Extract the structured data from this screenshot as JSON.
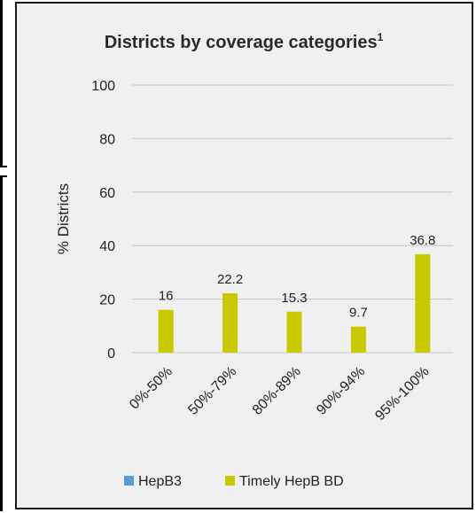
{
  "chart_data": {
    "type": "bar",
    "title": "Districts by coverage categories",
    "title_superscript": "1",
    "ylabel": "% Districts",
    "xlabel": "",
    "ylim": [
      0,
      100
    ],
    "yticks": [
      0,
      20,
      40,
      60,
      80,
      100
    ],
    "grid": true,
    "legend_position": "bottom",
    "categories": [
      "0%-50%",
      "50%-79%",
      "80%-89%",
      "90%-94%",
      "95%-100%"
    ],
    "series": [
      {
        "name": "HepB3",
        "color": "#5b9bd5",
        "values": [
          0,
          0,
          0,
          0,
          0
        ]
      },
      {
        "name": "Timely HepB BD",
        "color": "#c9c900",
        "values": [
          16,
          22.2,
          15.3,
          9.7,
          36.8
        ]
      }
    ],
    "data_labels": [
      "16",
      "22.2",
      "15.3",
      "9.7",
      "36.8"
    ]
  }
}
